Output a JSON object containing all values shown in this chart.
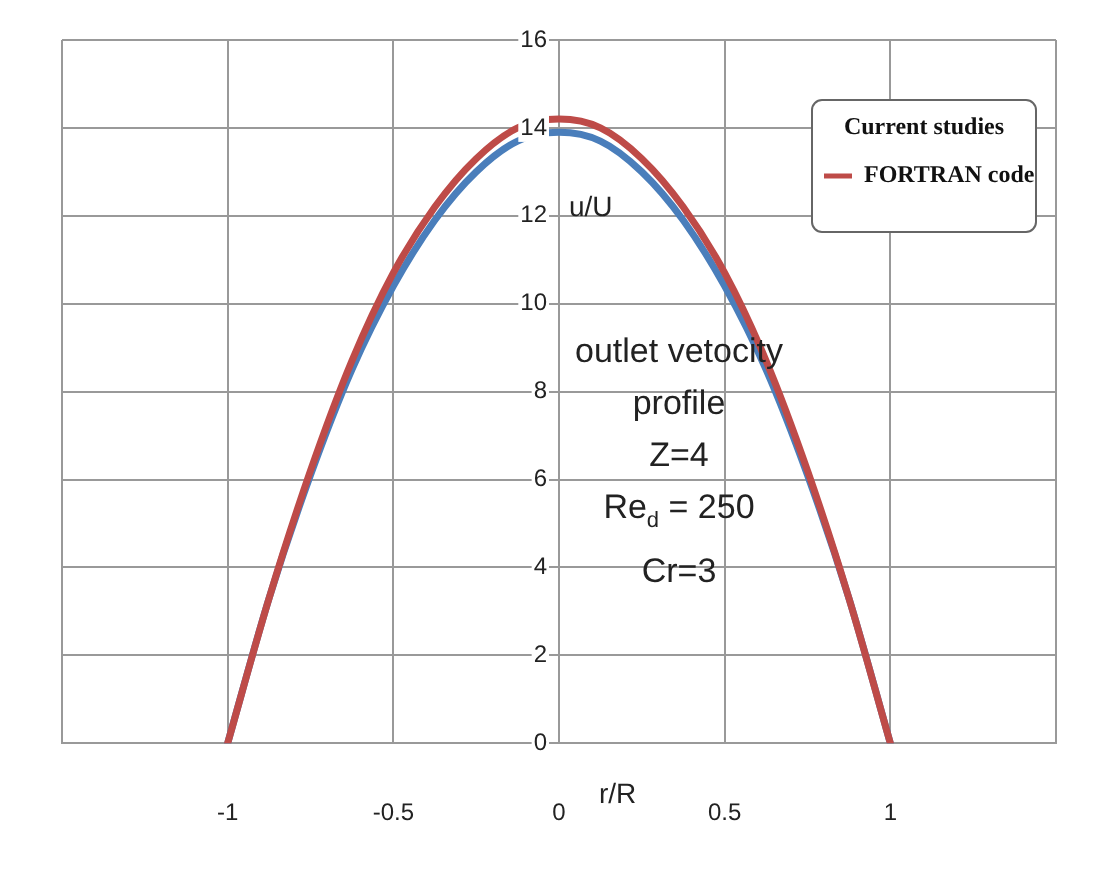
{
  "chart_data": {
    "type": "line",
    "xlabel": "r/R",
    "ylabel": "u/U",
    "legend_title": "Current studies",
    "xlim": [
      -1.5,
      1.5
    ],
    "xticks": [
      {
        "value": -1.5,
        "label": null
      },
      -1,
      -0.5,
      0,
      0.5,
      1,
      {
        "value": 1.5,
        "label": null
      }
    ],
    "ylim": [
      0,
      16
    ],
    "yticks": [
      0,
      2,
      4,
      6,
      8,
      10,
      12,
      14,
      16
    ],
    "x": [
      -1,
      -0.875,
      -0.75,
      -0.625,
      -0.5,
      -0.375,
      -0.25,
      -0.125,
      0,
      0.125,
      0.25,
      0.375,
      0.5,
      0.625,
      0.75,
      0.875,
      1
    ],
    "series": [
      {
        "color": "#4a7ebb",
        "values": [
          0,
          3.3,
          6.1,
          8.5,
          10.4,
          11.9,
          13.0,
          13.7,
          13.9,
          13.7,
          13.0,
          11.9,
          10.4,
          8.5,
          6.1,
          3.3,
          0
        ]
      },
      {
        "name": "FORTRAN code",
        "color": "#be4b48",
        "values": [
          0,
          3.3,
          6.2,
          8.7,
          10.7,
          12.2,
          13.3,
          14.0,
          14.2,
          14.0,
          13.3,
          12.2,
          10.7,
          8.7,
          6.2,
          3.3,
          0
        ]
      }
    ],
    "annotations": [
      "outlet vetocity\nprofile\nZ=4\nRe$_{d}$ = 250\nCr=3"
    ],
    "grid": true,
    "legend": "top right",
    "marker": "none",
    "line_style": "solid"
  }
}
